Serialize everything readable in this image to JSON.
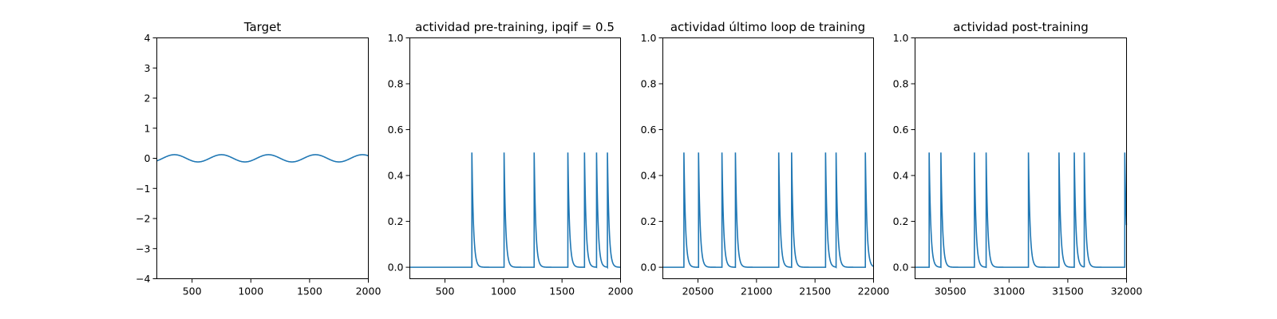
{
  "chart_data": [
    {
      "type": "line",
      "title": "Target",
      "xlim": [
        200,
        2000
      ],
      "ylim": [
        -4,
        4
      ],
      "xticks": [
        500,
        1000,
        1500,
        2000
      ],
      "yticks": [
        -4,
        -3,
        -2,
        -1,
        0,
        1,
        2,
        3,
        4
      ],
      "series": [
        {
          "kind": "sine",
          "amplitude": 0.12,
          "period": 400,
          "peak_at": 350,
          "color": "#1f77b4"
        }
      ]
    },
    {
      "type": "line",
      "title": "actividad pre-training, ipqif = 0.5",
      "xlim": [
        200,
        2000
      ],
      "ylim": [
        -0.05,
        1.0
      ],
      "xticks": [
        500,
        1000,
        1500,
        2000
      ],
      "yticks": [
        0.0,
        0.2,
        0.4,
        0.6,
        0.8,
        1.0
      ],
      "series": [
        {
          "kind": "spikes",
          "peak": 0.5,
          "decay": 14,
          "spike_times": [
            730,
            1005,
            1262,
            1550,
            1692,
            1795,
            1888
          ],
          "color": "#1f77b4"
        }
      ]
    },
    {
      "type": "line",
      "title": "actividad último loop de training",
      "xlim": [
        20200,
        22000
      ],
      "ylim": [
        -0.05,
        1.0
      ],
      "xticks": [
        20500,
        21000,
        21500,
        22000
      ],
      "yticks": [
        0.0,
        0.2,
        0.4,
        0.6,
        0.8,
        1.0
      ],
      "series": [
        {
          "kind": "spikes",
          "peak": 0.5,
          "decay": 14,
          "spike_times": [
            20380,
            20505,
            20705,
            20820,
            21190,
            21300,
            21590,
            21680,
            21930
          ],
          "color": "#1f77b4"
        }
      ]
    },
    {
      "type": "line",
      "title": "actividad post-training",
      "xlim": [
        30200,
        32000
      ],
      "ylim": [
        -0.05,
        1.0
      ],
      "xticks": [
        30500,
        31000,
        31500,
        32000
      ],
      "yticks": [
        0.0,
        0.2,
        0.4,
        0.6,
        0.8,
        1.0
      ],
      "series": [
        {
          "kind": "spikes",
          "peak": 0.5,
          "decay": 14,
          "spike_times": [
            30320,
            30420,
            30705,
            30805,
            31165,
            31425,
            31555,
            31640,
            31985
          ],
          "color": "#1f77b4"
        }
      ]
    }
  ]
}
